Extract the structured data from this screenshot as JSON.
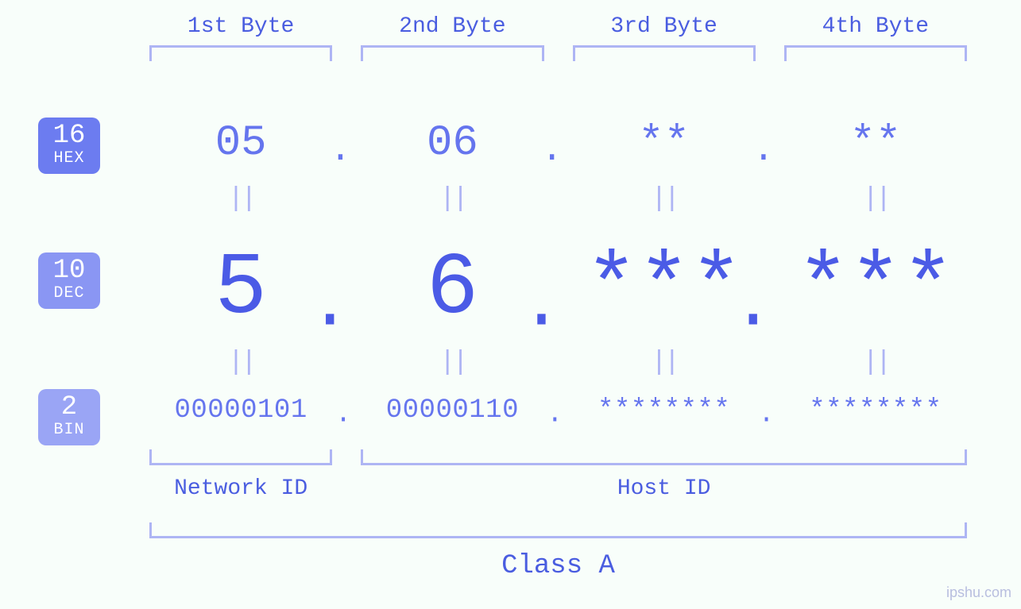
{
  "colors": {
    "background": "#f8fefa",
    "primary_text": "#4a5de0",
    "value_hex": "#6575ee",
    "value_dec": "#4b5be6",
    "value_bin": "#6575ee",
    "equals": "#aeb5f4",
    "bracket": "#aeb5f4",
    "badge_hex": "#6c7cf0",
    "badge_dec": "#8a96f3",
    "badge_bin": "#9aa5f5",
    "badge_text": "#ffffff",
    "watermark": "#b8bedf"
  },
  "headers": {
    "byte1": "1st Byte",
    "byte2": "2nd Byte",
    "byte3": "3rd Byte",
    "byte4": "4th Byte"
  },
  "bases": {
    "hex": {
      "num": "16",
      "label": "HEX"
    },
    "dec": {
      "num": "10",
      "label": "DEC"
    },
    "bin": {
      "num": "2",
      "label": "BIN"
    }
  },
  "bytes": [
    {
      "hex": "05",
      "dec": "5",
      "bin": "00000101"
    },
    {
      "hex": "06",
      "dec": "6",
      "bin": "00000110"
    },
    {
      "hex": "**",
      "dec": "***",
      "bin": "********"
    },
    {
      "hex": "**",
      "dec": "***",
      "bin": "********"
    }
  ],
  "sections": {
    "network": "Network ID",
    "host": "Host ID",
    "class": "Class A"
  },
  "equals_glyph": "||",
  "dot": ".",
  "watermark": "ipshu.com",
  "typography": {
    "header_fontsize": 28,
    "hex_value_fontsize": 54,
    "dec_value_fontsize": 110,
    "bin_value_fontsize": 34,
    "equals_fontsize": 34,
    "badge_num_fontsize": 34,
    "badge_label_fontsize": 20,
    "section_fontsize": 28,
    "class_fontsize": 34
  }
}
